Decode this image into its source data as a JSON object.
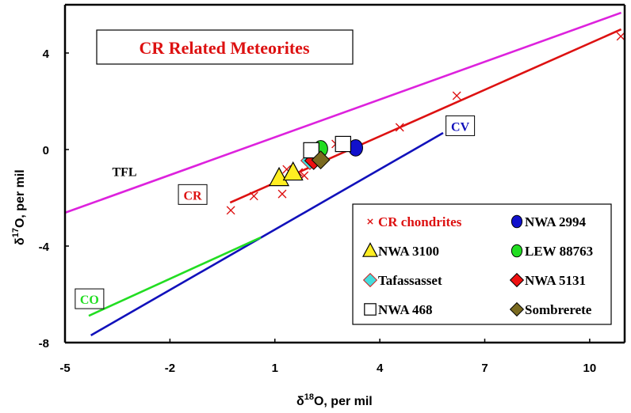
{
  "chart_data": {
    "type": "scatter",
    "title": "CR Related Meteorites",
    "xlabel": "δ18O, per mil",
    "xlabel_parts": {
      "delta": "δ",
      "sup": "18",
      "rest": "O, per mil"
    },
    "ylabel": "δ17O, per mil",
    "ylabel_parts": {
      "delta": "δ",
      "sup": "17",
      "rest": "O, per mil"
    },
    "xlim": [
      -5,
      11
    ],
    "ylim": [
      -8,
      6
    ],
    "xticks": [
      -5,
      -2,
      1,
      4,
      7,
      10
    ],
    "yticks": [
      -8,
      -4,
      0,
      4
    ],
    "grid": false,
    "legend_placement": "bottom-right",
    "lines": [
      {
        "name": "TFL",
        "color": "#dd22dd",
        "points": [
          [
            -5,
            -2.62
          ],
          [
            10.9,
            5.67
          ]
        ]
      },
      {
        "name": "CR",
        "color": "#dd1111",
        "points": [
          [
            -0.28,
            -2.2
          ],
          [
            10.9,
            4.98
          ]
        ]
      },
      {
        "name": "CV",
        "color": "#1111bb",
        "points": [
          [
            -4.26,
            -7.7
          ],
          [
            5.81,
            0.69
          ]
        ]
      },
      {
        "name": "CO",
        "color": "#22dd22",
        "points": [
          [
            -4.32,
            -6.89
          ],
          [
            0.6,
            -3.64
          ]
        ]
      }
    ],
    "line_labels": [
      {
        "text": "TFL",
        "color": "#000000",
        "boxed": false,
        "at": [
          -3.3,
          -0.9
        ]
      },
      {
        "text": "CR",
        "color": "#dd1111",
        "boxed": true,
        "at": [
          -1.35,
          -1.88
        ]
      },
      {
        "text": "CV",
        "color": "#1111bb",
        "boxed": true,
        "at": [
          6.3,
          0.97
        ]
      },
      {
        "text": "CO",
        "color": "#22dd22",
        "boxed": true,
        "at": [
          -4.3,
          -6.2
        ]
      }
    ],
    "series": [
      {
        "name": "CR chondrites",
        "marker": "x",
        "color": "#dd1111",
        "stroke": "#dd1111",
        "label_color": "#dd1111",
        "points": [
          [
            -0.26,
            -2.52
          ],
          [
            0.4,
            -1.93
          ],
          [
            1.21,
            -1.84
          ],
          [
            1.34,
            -0.82
          ],
          [
            1.68,
            -0.95
          ],
          [
            1.84,
            -1.08
          ],
          [
            2.74,
            0.23
          ],
          [
            4.57,
            0.92
          ],
          [
            6.2,
            2.23
          ],
          [
            10.89,
            4.69
          ]
        ]
      },
      {
        "name": "NWA 2994",
        "marker": "circle",
        "color": "#1111cc",
        "stroke": "#000000",
        "label_color": "#000000",
        "points": [
          [
            3.31,
            0.07
          ]
        ]
      },
      {
        "name": "NWA 3100",
        "marker": "triangle",
        "color": "#ffee22",
        "stroke": "#000000",
        "label_color": "#000000",
        "points": [
          [
            1.12,
            -1.18
          ],
          [
            1.52,
            -0.95
          ]
        ]
      },
      {
        "name": "LEW 88763",
        "marker": "circle",
        "color": "#22dd22",
        "stroke": "#000000",
        "label_color": "#000000",
        "points": [
          [
            2.31,
            0.03
          ]
        ]
      },
      {
        "name": "Tafassasset",
        "marker": "diamond",
        "color": "#44dddd",
        "stroke": "#cc2222",
        "label_color": "#000000",
        "points": [
          [
            2.0,
            -0.46
          ]
        ]
      },
      {
        "name": "NWA 5131",
        "marker": "diamond",
        "color": "#ee1111",
        "stroke": "#000000",
        "label_color": "#000000",
        "points": [
          [
            2.11,
            -0.46
          ]
        ]
      },
      {
        "name": "NWA 468",
        "marker": "square",
        "color": "#ffffff",
        "stroke": "#000000",
        "label_color": "#000000",
        "points": [
          [
            2.04,
            -0.03
          ],
          [
            2.95,
            0.23
          ]
        ]
      },
      {
        "name": "Sombrerete",
        "marker": "diamond",
        "color": "#7a6a20",
        "stroke": "#000000",
        "label_color": "#000000",
        "points": [
          [
            2.31,
            -0.43
          ]
        ]
      }
    ],
    "legend_order": [
      [
        "CR chondrites",
        "NWA 2994"
      ],
      [
        "NWA 3100",
        "LEW 88763"
      ],
      [
        "Tafassasset",
        "NWA 5131"
      ],
      [
        "NWA 468",
        "Sombrerete"
      ]
    ],
    "title_color": "#dd1111"
  }
}
